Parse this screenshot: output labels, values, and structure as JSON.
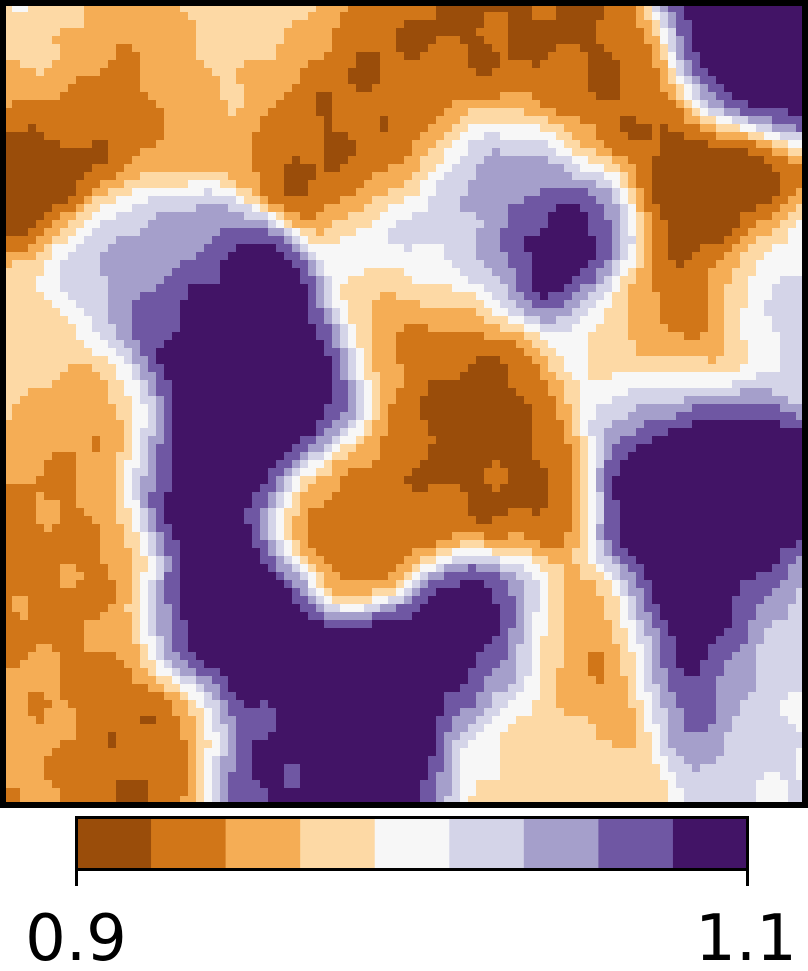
{
  "chart_data": {
    "type": "heatmap",
    "title": "",
    "xlabel": "",
    "ylabel": "",
    "colormap": "PuOr",
    "levels": [
      0.9,
      0.9222,
      0.9444,
      0.9667,
      0.9889,
      1.0111,
      1.0333,
      1.0556,
      1.0778,
      1.1
    ],
    "colors": [
      "#9a4d0a",
      "#d17618",
      "#f5ad55",
      "#fdd9a5",
      "#f7f7f7",
      "#d4d4e8",
      "#a59fcb",
      "#6f57a3",
      "#421466"
    ],
    "vmin": 0.9,
    "vmax": 1.1,
    "colorbar": {
      "orientation": "horizontal",
      "ticks": [
        0.9,
        1.1
      ],
      "tick_labels": [
        "0.9",
        "1.1"
      ]
    },
    "grid": false,
    "legend": "none",
    "features": [
      {
        "x": 0.05,
        "y": 0.08,
        "value": 0.99
      },
      {
        "x": 0.03,
        "y": 0.18,
        "value": 0.9
      },
      {
        "x": 0.12,
        "y": 0.12,
        "value": 0.92
      },
      {
        "x": 0.22,
        "y": 0.1,
        "value": 0.96
      },
      {
        "x": 0.33,
        "y": 0.05,
        "value": 0.99
      },
      {
        "x": 0.4,
        "y": 0.11,
        "value": 0.91
      },
      {
        "x": 0.47,
        "y": 0.15,
        "value": 0.93
      },
      {
        "x": 0.63,
        "y": 0.06,
        "value": 0.92
      },
      {
        "x": 0.75,
        "y": 0.12,
        "value": 0.92
      },
      {
        "x": 0.94,
        "y": 0.05,
        "value": 1.1
      },
      {
        "x": 0.88,
        "y": 0.25,
        "value": 0.9
      },
      {
        "x": 0.7,
        "y": 0.3,
        "value": 1.1
      },
      {
        "x": 0.64,
        "y": 0.22,
        "value": 1.05
      },
      {
        "x": 0.55,
        "y": 0.3,
        "value": 1.02
      },
      {
        "x": 0.83,
        "y": 0.4,
        "value": 0.91
      },
      {
        "x": 0.97,
        "y": 0.36,
        "value": 1.02
      },
      {
        "x": 0.23,
        "y": 0.4,
        "value": 1.1
      },
      {
        "x": 0.36,
        "y": 0.48,
        "value": 1.1
      },
      {
        "x": 0.26,
        "y": 0.55,
        "value": 1.1
      },
      {
        "x": 0.17,
        "y": 0.33,
        "value": 1.03
      },
      {
        "x": 0.58,
        "y": 0.5,
        "value": 0.91
      },
      {
        "x": 0.52,
        "y": 0.42,
        "value": 0.94
      },
      {
        "x": 0.1,
        "y": 0.52,
        "value": 0.94
      },
      {
        "x": 0.03,
        "y": 0.45,
        "value": 0.98
      },
      {
        "x": 0.45,
        "y": 0.63,
        "value": 0.93
      },
      {
        "x": 0.63,
        "y": 0.58,
        "value": 0.92
      },
      {
        "x": 0.87,
        "y": 0.66,
        "value": 1.1
      },
      {
        "x": 0.84,
        "y": 0.55,
        "value": 1.1
      },
      {
        "x": 0.87,
        "y": 0.78,
        "value": 1.1
      },
      {
        "x": 0.27,
        "y": 0.77,
        "value": 1.1
      },
      {
        "x": 0.46,
        "y": 0.89,
        "value": 1.1
      },
      {
        "x": 0.6,
        "y": 0.8,
        "value": 1.1
      },
      {
        "x": 0.35,
        "y": 0.94,
        "value": 1.08
      },
      {
        "x": 0.1,
        "y": 0.76,
        "value": 0.94
      },
      {
        "x": 0.17,
        "y": 0.92,
        "value": 0.92
      },
      {
        "x": 0.04,
        "y": 0.91,
        "value": 0.95
      },
      {
        "x": 0.72,
        "y": 0.81,
        "value": 0.93
      },
      {
        "x": 0.66,
        "y": 0.92,
        "value": 0.98
      },
      {
        "x": 0.97,
        "y": 0.82,
        "value": 1.01
      },
      {
        "x": 0.78,
        "y": 0.45,
        "value": 1.0
      }
    ]
  }
}
